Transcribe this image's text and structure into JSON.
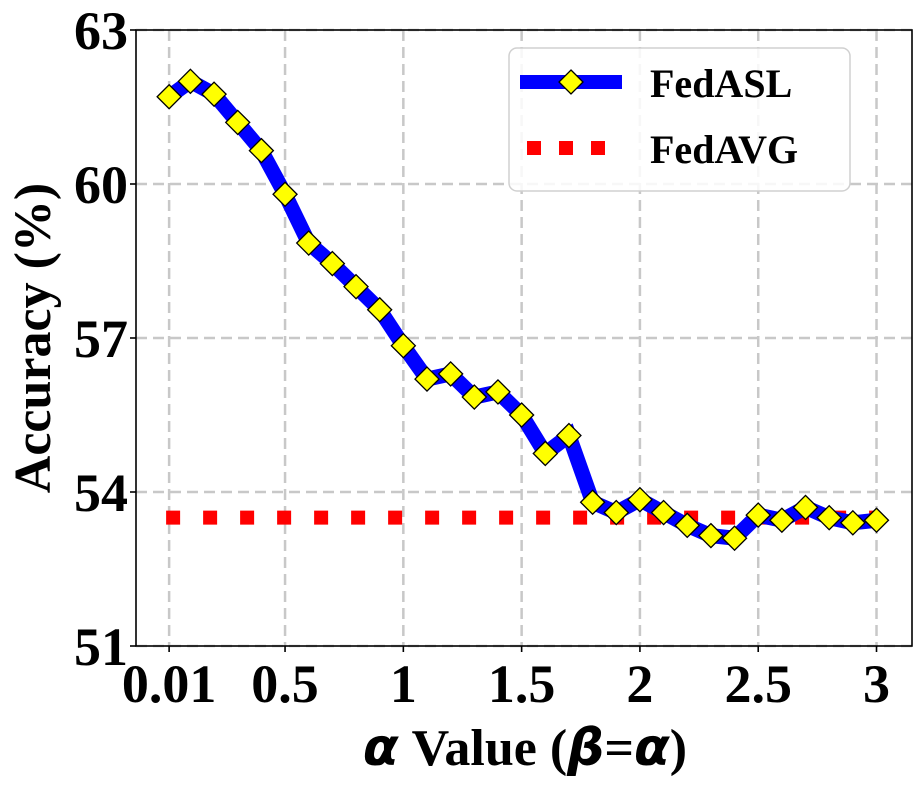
{
  "chart_data": {
    "type": "line",
    "xlabel_symbol": "α",
    "xlabel_text": " Value (",
    "xlabel_symbol2": "β",
    "xlabel_eq": "=",
    "xlabel_symbol3": "α",
    "xlabel_close": ")",
    "ylabel": "Accuracy (%)",
    "xlim": [
      -0.13,
      3.15
    ],
    "ylim": [
      51,
      63
    ],
    "x_ticks": [
      0.01,
      0.5,
      1,
      1.5,
      2,
      2.5,
      3
    ],
    "x_tick_labels": [
      "0.01",
      "0.5",
      "1",
      "1.5",
      "2",
      "2.5",
      "3"
    ],
    "y_ticks": [
      51,
      54,
      57,
      60,
      63
    ],
    "y_tick_labels": [
      "51",
      "54",
      "57",
      "60",
      "63"
    ],
    "grid": true,
    "legend_position": "top-right",
    "series": [
      {
        "name": "FedASL",
        "color": "#0000ff",
        "marker": "diamond",
        "marker_color": "#ffff00",
        "x": [
          0.01,
          0.1,
          0.2,
          0.3,
          0.4,
          0.5,
          0.6,
          0.7,
          0.8,
          0.9,
          1.0,
          1.1,
          1.2,
          1.3,
          1.4,
          1.5,
          1.6,
          1.7,
          1.8,
          1.9,
          2.0,
          2.1,
          2.2,
          2.3,
          2.4,
          2.5,
          2.6,
          2.7,
          2.8,
          2.9,
          3.0
        ],
        "values": [
          61.7,
          62.0,
          61.75,
          61.2,
          60.65,
          59.8,
          58.85,
          58.45,
          58.0,
          57.55,
          56.85,
          56.2,
          56.3,
          55.85,
          55.95,
          55.5,
          54.75,
          55.1,
          53.8,
          53.6,
          53.85,
          53.6,
          53.35,
          53.15,
          53.1,
          53.55,
          53.45,
          53.7,
          53.5,
          53.4,
          53.45
        ]
      },
      {
        "name": "FedAVG",
        "color": "#ff0000",
        "style": "dotted",
        "x": [
          0.01,
          3.0
        ],
        "values": [
          53.5,
          53.5
        ]
      }
    ]
  }
}
